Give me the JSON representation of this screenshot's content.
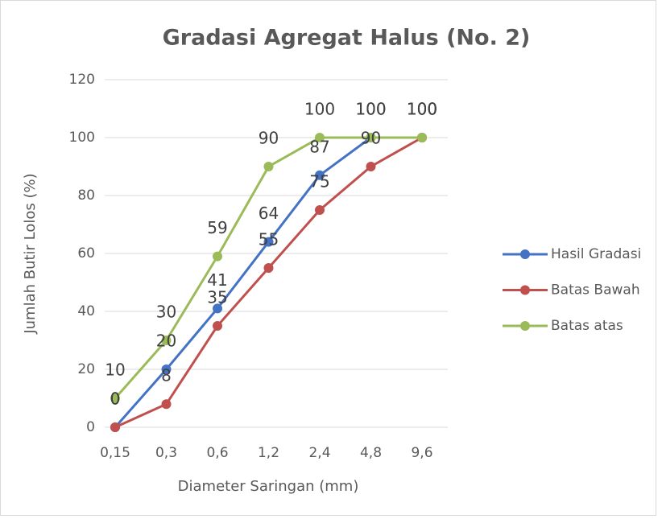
{
  "chart_data": {
    "type": "line",
    "title": "Gradasi Agregat Halus (No. 2)",
    "x_label": "Diameter Saringan (mm)",
    "y_label": "Jumlah Butir Lolos (%)",
    "categories": [
      "0,15",
      "0,3",
      "0,6",
      "1,2",
      "2,4",
      "4,8",
      "9,6"
    ],
    "series": [
      {
        "name": "Hasil Gradasi",
        "color": "#4472c4",
        "values": [
          0,
          20,
          41,
          64,
          87,
          100,
          100
        ]
      },
      {
        "name": "Batas Bawah",
        "color": "#c0504d",
        "values": [
          0,
          8,
          35,
          55,
          75,
          90,
          100
        ]
      },
      {
        "name": "Batas atas",
        "color": "#9bbb59",
        "values": [
          10,
          30,
          59,
          90,
          100,
          100,
          100
        ]
      }
    ],
    "ylim": [
      0,
      120
    ],
    "yticks": [
      0,
      20,
      40,
      60,
      80,
      100,
      120
    ],
    "grid": true,
    "legend": "right",
    "data_labels": true
  }
}
